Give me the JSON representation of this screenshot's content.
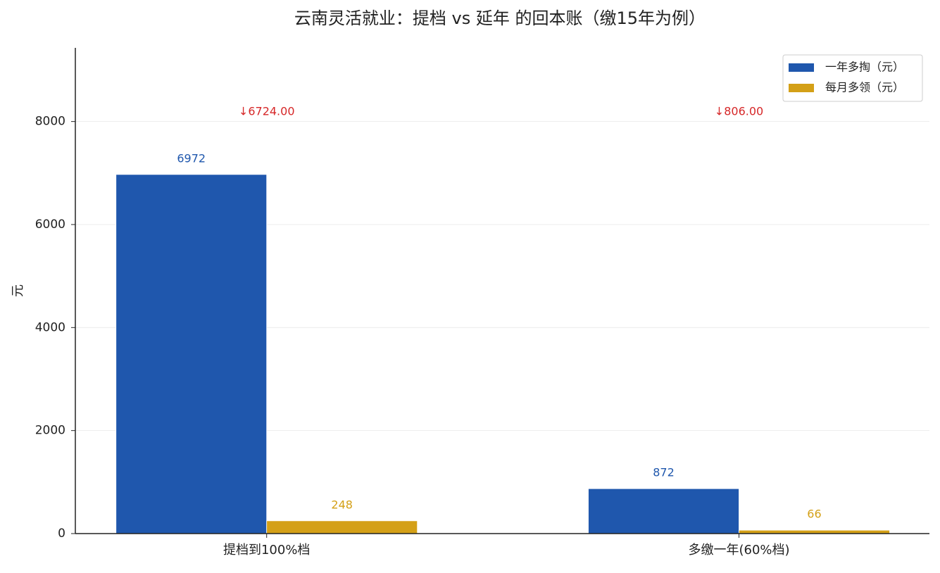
{
  "chart_data": {
    "type": "bar",
    "title": "云南灵活就业：提档 vs 延年 的回本账（缴15年为例）",
    "y_label": "元",
    "categories": [
      "提档到100%档",
      "多缴一年(60%档)"
    ],
    "series": [
      {
        "name": "一年多掏（元）",
        "color": "#1f57ad",
        "values": [
          6972,
          872
        ]
      },
      {
        "name": "每月多领（元）",
        "color": "#d4a017",
        "values": [
          248,
          66
        ]
      }
    ],
    "annotations": [
      "↓6724.00",
      "↓806.00"
    ],
    "annotation_color": "#d62728",
    "ylim": [
      0,
      9430
    ],
    "yticks": [
      0,
      2000,
      4000,
      6000,
      8000
    ],
    "grid": true,
    "legend": "upper right"
  }
}
